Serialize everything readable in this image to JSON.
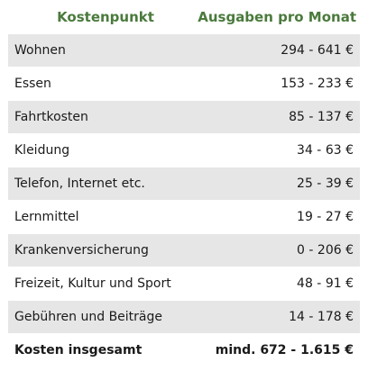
{
  "table": {
    "headers": {
      "item": "Kostenpunkt",
      "monthly": "Ausgaben pro Monat"
    },
    "rows": [
      {
        "item": "Wohnen",
        "cost": "294 - 641 €"
      },
      {
        "item": "Essen",
        "cost": "153 - 233 €"
      },
      {
        "item": "Fahrtkosten",
        "cost": "85 - 137 €"
      },
      {
        "item": "Kleidung",
        "cost": "34 - 63 €"
      },
      {
        "item": "Telefon, Internet etc.",
        "cost": "25 - 39 €"
      },
      {
        "item": "Lernmittel",
        "cost": "19 - 27 €"
      },
      {
        "item": "Krankenversicherung",
        "cost": "0 - 206 €"
      },
      {
        "item": "Freizeit, Kultur und Sport",
        "cost": "48 - 91 €"
      },
      {
        "item": "Gebühren und Beiträge",
        "cost": "14 - 178 €"
      }
    ],
    "total": {
      "item": "Kosten insgesamt",
      "cost": "mind. 672 -  1.615 €"
    }
  },
  "colors": {
    "header_text": "#4a7a3c",
    "row_shade": "#e6e6e6"
  }
}
